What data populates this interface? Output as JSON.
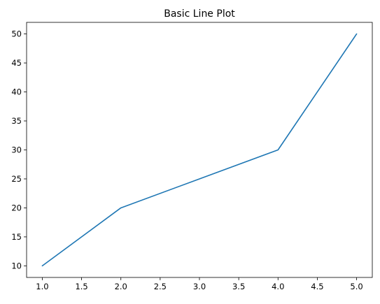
{
  "chart_data": {
    "type": "line",
    "title": "Basic Line Plot",
    "xlabel": "",
    "ylabel": "",
    "x": [
      1,
      2,
      3,
      4,
      5
    ],
    "series": [
      {
        "values": [
          10,
          20,
          25,
          30,
          50
        ],
        "color": "#1f77b4"
      }
    ],
    "xlim": [
      0.8,
      5.2
    ],
    "ylim": [
      8,
      52
    ],
    "xticks": [
      1.0,
      1.5,
      2.0,
      2.5,
      3.0,
      3.5,
      4.0,
      4.5,
      5.0
    ],
    "xtick_labels": [
      "1.0",
      "1.5",
      "2.0",
      "2.5",
      "3.0",
      "3.5",
      "4.0",
      "4.5",
      "5.0"
    ],
    "yticks": [
      10,
      15,
      20,
      25,
      30,
      35,
      40,
      45,
      50
    ],
    "ytick_labels": [
      "10",
      "15",
      "20",
      "25",
      "30",
      "35",
      "40",
      "45",
      "50"
    ],
    "grid": false,
    "legend": false
  }
}
